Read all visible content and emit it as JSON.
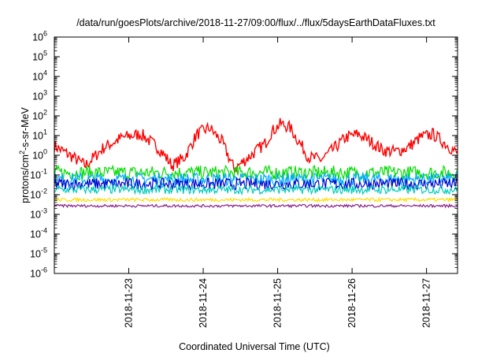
{
  "chart_data": {
    "type": "line",
    "title": "/data/run/goesPlots/archive/2018-11-27/09:00/flux/../flux/5daysEarthDataFluxes.txt",
    "xlabel": "Coordinated Universal Time (UTC)",
    "ylabel": {
      "base": "protons/cm",
      "sup": "2",
      "rest": "-s-sr-MeV"
    },
    "x_range": [
      "2018-11-22T00:00",
      "2018-11-27T10:00"
    ],
    "x_ticks": [
      "2018-11-23",
      "2018-11-24",
      "2018-11-25",
      "2018-11-26",
      "2018-11-27"
    ],
    "y_scale": "log",
    "y_range": [
      1e-06,
      1000000.0
    ],
    "y_ticks": [
      {
        "base": "10",
        "exp": "-6"
      },
      {
        "base": "10",
        "exp": "-5"
      },
      {
        "base": "10",
        "exp": "-4"
      },
      {
        "base": "10",
        "exp": "-3"
      },
      {
        "base": "10",
        "exp": "-2"
      },
      {
        "base": "10",
        "exp": "-1"
      },
      {
        "base": "10",
        "exp": "0"
      },
      {
        "base": "10",
        "exp": "1"
      },
      {
        "base": "10",
        "exp": "2"
      },
      {
        "base": "10",
        "exp": "3"
      },
      {
        "base": "10",
        "exp": "4"
      },
      {
        "base": "10",
        "exp": "5"
      },
      {
        "base": "10",
        "exp": "6"
      }
    ],
    "grid": false,
    "legend": "none",
    "series": [
      {
        "color": "#ff0000",
        "x": [
          "2018-11-22T00:00",
          "2018-11-22T06:00",
          "2018-11-22T10:00",
          "2018-11-22T16:00",
          "2018-11-22T22:00",
          "2018-11-23T04:00",
          "2018-11-23T10:00",
          "2018-11-23T14:00",
          "2018-11-23T18:00",
          "2018-11-23T22:00",
          "2018-11-24T02:00",
          "2018-11-24T06:00",
          "2018-11-24T10:00",
          "2018-11-24T16:00",
          "2018-11-24T20:00",
          "2018-11-24T22:00",
          "2018-11-25T01:00",
          "2018-11-25T04:00",
          "2018-11-25T06:00",
          "2018-11-25T10:00",
          "2018-11-25T14:00",
          "2018-11-25T18:00",
          "2018-11-25T22:00",
          "2018-11-26T02:00",
          "2018-11-26T06:00",
          "2018-11-26T10:00",
          "2018-11-26T14:00",
          "2018-11-26T18:00",
          "2018-11-26T22:00",
          "2018-11-27T02:00",
          "2018-11-27T06:00",
          "2018-11-27T10:00"
        ],
        "y": [
          3,
          0.8,
          0.3,
          2.5,
          8,
          12,
          2,
          0.3,
          0.8,
          12,
          25,
          5,
          0.2,
          1.2,
          4,
          15,
          40,
          25,
          8,
          0.8,
          0.6,
          2,
          8,
          12,
          5,
          1.8,
          1.5,
          2.5,
          8,
          12,
          4,
          1.2
        ]
      },
      {
        "color": "#00dd00",
        "x": [
          "2018-11-22T00:00",
          "2018-11-27T10:00"
        ],
        "y": [
          0.13,
          0.13
        ]
      },
      {
        "color": "#00aaff",
        "x": [
          "2018-11-22T00:00",
          "2018-11-27T10:00"
        ],
        "y": [
          0.06,
          0.06
        ]
      },
      {
        "color": "#0000cc",
        "x": [
          "2018-11-22T00:00",
          "2018-11-27T10:00"
        ],
        "y": [
          0.035,
          0.035
        ]
      },
      {
        "color": "#00ccbb",
        "x": [
          "2018-11-22T00:00",
          "2018-11-27T10:00"
        ],
        "y": [
          0.018,
          0.018
        ]
      },
      {
        "color": "#ffdd00",
        "x": [
          "2018-11-22T00:00",
          "2018-11-27T10:00"
        ],
        "y": [
          0.0055,
          0.0055
        ]
      },
      {
        "color": "#882288",
        "x": [
          "2018-11-22T00:00",
          "2018-11-27T10:00"
        ],
        "y": [
          0.0027,
          0.0027
        ]
      }
    ]
  }
}
